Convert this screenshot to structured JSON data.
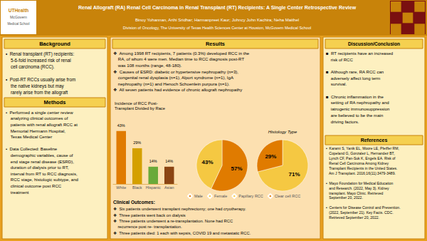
{
  "title": "Renal Allograft (RA) Renal Cell Carcinoma in Renal Transplant (RT) Recipients: A Single Center Retrospective Review",
  "subtitle": "Binoy Yohannan, Arthi Sridhar; Harmanpreet Kaur; Johncy John Kachira; Neha Maithel",
  "annotations": [
    "Division of Oncology, The University of Texas Health Sciences Center at Houston, McGovern Medical School",
    "UTHealth",
    "McGovern",
    "Medical School",
    "Background",
    "•  Renal transplant (RT) recipients:\n    5-6-fold increased risk of renal\n    cell carcinoma (RCC).\n\n•  Post-RT RCCs usually arise from\n    the native kidneys but may\n    rarely arise from the allograft",
    "Methods",
    "•  Performed a single center review\n    analyzing clinical outcomes of\n    patients with renal allograft RCC at\n    Memorial Hermann Hospital,\n    Texas Medical Center\n\n•  Data Collected: Baseline\n    demographic variables, cause of\n    end stage renal disease (ESRD),\n    duration of dialysis prior to RT,\n    interval from RT to RCC diagnosis,\n    RCC stage, histologic subtype, and\n    clinical outcome post RCC\n    treatment",
    "Results",
    "❖  Among 1998 RT recipients, 7 patients (0.3%) developed RCC in the\n    RA, of whom 4 were men. Median time to RCC diagnosis post-RT\n    was 108 months (range, 48-180).\n❖  Causes of ESRD: diabetic or hypertensive nephropathy (n=3),\n    congenital renal dysplasia (n=1), Alport syndrome (n=1), IgA\n    nephropathy (n=1) and Henoch Schoenlein purpura (n=1).\n❖  All seven patients had evidence of chronic allograft nephropathy",
    "Clinical Outcomes:",
    "❖  Six patients underwent transplant nephrectomy; one had cryotherapy.\n❖  Three patients went back on dialysis\n❖  Three patients underwent a re-transplantation. None had RCC\n    recurrence post re- transplantation.\n❖  Three patients died: 1 each with sepsis, COVID 19 and metastatic RCC.",
    "Discussion/Conclusion",
    "■  RT recipients have an increased\n    risk of RCC\n\n■  Although rare, RA RCC can\n    adversely affect long term\n    survival.\n\n■  Chronic inflammation in the\n    setting of RA nephropathy and\n    iatrogenic immunosuppression\n    are believed to be the main\n    driving factors.",
    "References",
    "•  Karami S, Yanik EL, Moore LE, Pfeiffer RM,\n   Copeland G, Gonzalez L, Hernandez BT,\n   Lynch CF, Pan-Suk K, Engels EA. Risk of\n   Renal Cell Carcinoma Among Kidney\n   Transplant Recipients in the United States.\n   Am J Transplant. 2016;16(11):3479-3489.\n\n•  Mayo Foundation for Medical Education\n   and Research. (2022, May 3). Kidney\n   transplant. Mayo Clinic. Retrieved\n   September 20, 2022.\n\n•  Centers for Disease Control and Prevention.\n   (2022, September 21). Key Facts. CDC.\n   Retrieved September 20, 2022."
  ],
  "chart_data": [
    {
      "type": "bar",
      "title": "Incidence of RCC Post-\nTransplant Divided by Race",
      "categories": [
        "White",
        "Black",
        "Hispanic",
        "Asian"
      ],
      "values": [
        43,
        29,
        14,
        14
      ],
      "value_labels": [
        "43%",
        "29%",
        "14%",
        "14%"
      ],
      "colors": [
        "#e07b00",
        "#d4a000",
        "#6aaa3a",
        "#8b4513"
      ],
      "ylim": [
        0,
        55
      ],
      "data_labels": true,
      "tick_labels": "x",
      "grid": false
    },
    {
      "type": "pie",
      "categories": [
        "Male",
        "Female"
      ],
      "values": [
        57,
        43
      ],
      "value_labels": [
        "57%",
        "43%"
      ],
      "colors": [
        "#e07b00",
        "#f5c842"
      ],
      "data_labels": true,
      "legend": "bottom"
    },
    {
      "type": "pie",
      "title": "Histology Type",
      "categories": [
        "Papillary RCC",
        "Clear cell RCC"
      ],
      "values": [
        71,
        29
      ],
      "value_labels": [
        "71%",
        "29%"
      ],
      "colors": [
        "#f5c842",
        "#e07b00"
      ],
      "data_labels": true,
      "legend": "bottom"
    }
  ]
}
